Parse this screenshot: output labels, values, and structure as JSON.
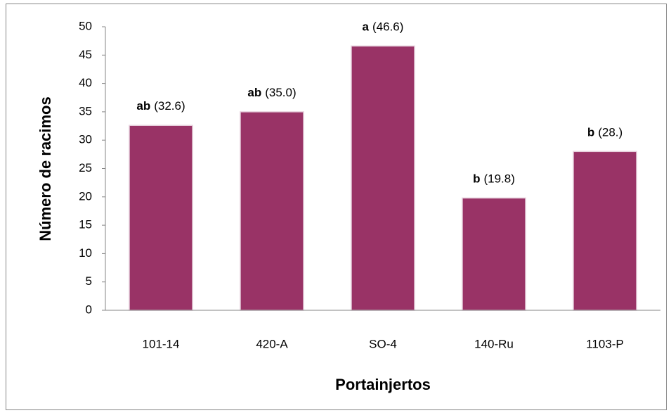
{
  "chart_data": {
    "type": "bar",
    "x_label": "Portainjertos",
    "y_label": "Número de racimos",
    "categories": [
      "101-14",
      "420-A",
      "SO-4",
      "140-Ru",
      "1103-P"
    ],
    "values": [
      32.6,
      35.0,
      46.6,
      19.8,
      28.0
    ],
    "groups": [
      "ab",
      "ab",
      "a",
      "b",
      "b"
    ],
    "value_labels": [
      "(32.6)",
      "(35.0)",
      "(46.6)",
      "(19.8)",
      "(28.)"
    ],
    "color": "#993366",
    "ylim": [
      0,
      50
    ],
    "yticks": [
      0,
      5,
      10,
      15,
      20,
      25,
      30,
      35,
      40,
      45,
      50
    ],
    "grid": false
  }
}
